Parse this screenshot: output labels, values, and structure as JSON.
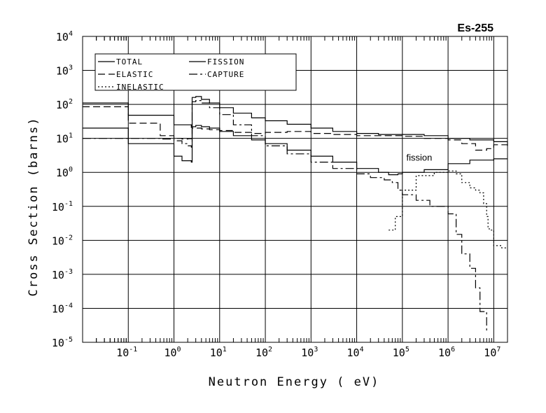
{
  "chart_data": {
    "type": "line",
    "title": "Es-255",
    "xlabel": "Neutron Energy ( eV)",
    "ylabel": "Cross Section (barns)",
    "x_scale": "log",
    "y_scale": "log",
    "xlim": [
      0.01,
      20000000
    ],
    "ylim": [
      1e-05,
      10000
    ],
    "grid": true,
    "legend_position": "top-left",
    "x_ticks": [
      {
        "value": 0.1,
        "base": "10",
        "exp": "-1"
      },
      {
        "value": 1,
        "base": "10",
        "exp": "0"
      },
      {
        "value": 10,
        "base": "10",
        "exp": "1"
      },
      {
        "value": 100,
        "base": "10",
        "exp": "2"
      },
      {
        "value": 1000,
        "base": "10",
        "exp": "3"
      },
      {
        "value": 10000,
        "base": "10",
        "exp": "4"
      },
      {
        "value": 100000,
        "base": "10",
        "exp": "5"
      },
      {
        "value": 1000000,
        "base": "10",
        "exp": "6"
      },
      {
        "value": 10000000,
        "base": "10",
        "exp": "7"
      }
    ],
    "y_ticks": [
      {
        "value": 1e-05,
        "base": "10",
        "exp": "-5"
      },
      {
        "value": 0.0001,
        "base": "10",
        "exp": "-4"
      },
      {
        "value": 0.001,
        "base": "10",
        "exp": "-3"
      },
      {
        "value": 0.01,
        "base": "10",
        "exp": "-2"
      },
      {
        "value": 0.1,
        "base": "10",
        "exp": "-1"
      },
      {
        "value": 1,
        "base": "10",
        "exp": "0"
      },
      {
        "value": 10,
        "base": "10",
        "exp": "1"
      },
      {
        "value": 100,
        "base": "10",
        "exp": "2"
      },
      {
        "value": 1000,
        "base": "10",
        "exp": "3"
      },
      {
        "value": 10000,
        "base": "10",
        "exp": "4"
      }
    ],
    "annotations": [
      {
        "text": "fission",
        "x": 200000,
        "y": 2.2
      }
    ],
    "series": [
      {
        "name": "TOTAL",
        "dash": "solid",
        "x": [
          0.01,
          0.1,
          1,
          2.4,
          2.5,
          3,
          4,
          6,
          10,
          20,
          50,
          100,
          300,
          1000,
          3000,
          10000,
          30000,
          100000,
          300000,
          1000000,
          3000000,
          5000000,
          10000000,
          20000000
        ],
        "y": [
          110,
          48,
          25,
          21,
          160,
          170,
          140,
          110,
          80,
          55,
          40,
          33,
          26,
          20,
          16,
          14,
          13,
          13,
          12,
          10,
          9,
          9,
          8,
          6
        ]
      },
      {
        "name": "ELASTIC",
        "dash": "dash",
        "x": [
          0.01,
          0.1,
          0.5,
          1,
          1.5,
          2,
          2.4,
          2.5,
          3,
          4,
          6,
          10,
          20,
          50,
          100,
          300,
          1000,
          3000,
          10000,
          30000,
          100000,
          300000,
          1000000,
          2000000,
          4000000,
          7000000,
          10000000,
          20000000
        ],
        "y": [
          85,
          28,
          12,
          10,
          9.5,
          9.8,
          10,
          20,
          20,
          19,
          18,
          17,
          15,
          14,
          15,
          16,
          14,
          13,
          12,
          12,
          11.5,
          10,
          9,
          7,
          4.5,
          5,
          6.5,
          5
        ]
      },
      {
        "name": "INELASTIC",
        "dash": "dot",
        "x": [
          50000,
          70000,
          100000,
          200000,
          500000,
          1000000,
          1200000,
          1500000,
          2000000,
          3000000,
          4000000,
          5000000,
          6000000,
          7000000,
          7500000,
          8000000,
          10000000,
          15000000,
          20000000
        ],
        "y": [
          0.02,
          0.05,
          0.3,
          0.8,
          1.0,
          1.1,
          1.1,
          0.9,
          0.5,
          0.35,
          0.3,
          0.25,
          0.12,
          0.05,
          0.022,
          0.02,
          0.007,
          0.006,
          0.006
        ]
      },
      {
        "name": "FISSION",
        "dash": "solid",
        "x": [
          0.01,
          0.1,
          1,
          1.5,
          2.4,
          2.5,
          3,
          4,
          6,
          10,
          20,
          50,
          100,
          300,
          1000,
          3000,
          10000,
          30000,
          50000,
          80000,
          100000,
          300000,
          1000000,
          3000000,
          10000000,
          20000000
        ],
        "y": [
          20,
          7,
          3,
          2.2,
          2,
          22,
          24,
          22,
          20,
          16,
          12,
          9,
          7,
          4.5,
          3,
          2,
          1.3,
          1.0,
          0.85,
          0.9,
          1.0,
          1.2,
          1.8,
          2.3,
          2.5,
          2.5
        ]
      },
      {
        "name": "CAPTURE",
        "dash": "dashdot",
        "x": [
          0.01,
          0.1,
          0.5,
          1,
          1.5,
          2,
          2.4,
          2.5,
          3,
          4,
          6,
          10,
          20,
          50,
          100,
          300,
          1000,
          3000,
          10000,
          20000,
          40000,
          60000,
          80000,
          100000,
          200000,
          400000,
          1000000,
          1500000,
          2000000,
          3000000,
          4000000,
          5000000,
          7000000
        ],
        "y": [
          10,
          10,
          9.5,
          8.5,
          7,
          6,
          5.5,
          120,
          130,
          110,
          80,
          50,
          25,
          12,
          6,
          3.5,
          2,
          1.3,
          0.9,
          0.7,
          0.6,
          0.5,
          0.3,
          0.22,
          0.15,
          0.1,
          0.06,
          0.015,
          0.004,
          0.0015,
          0.0004,
          8e-05,
          2e-05
        ]
      }
    ]
  }
}
